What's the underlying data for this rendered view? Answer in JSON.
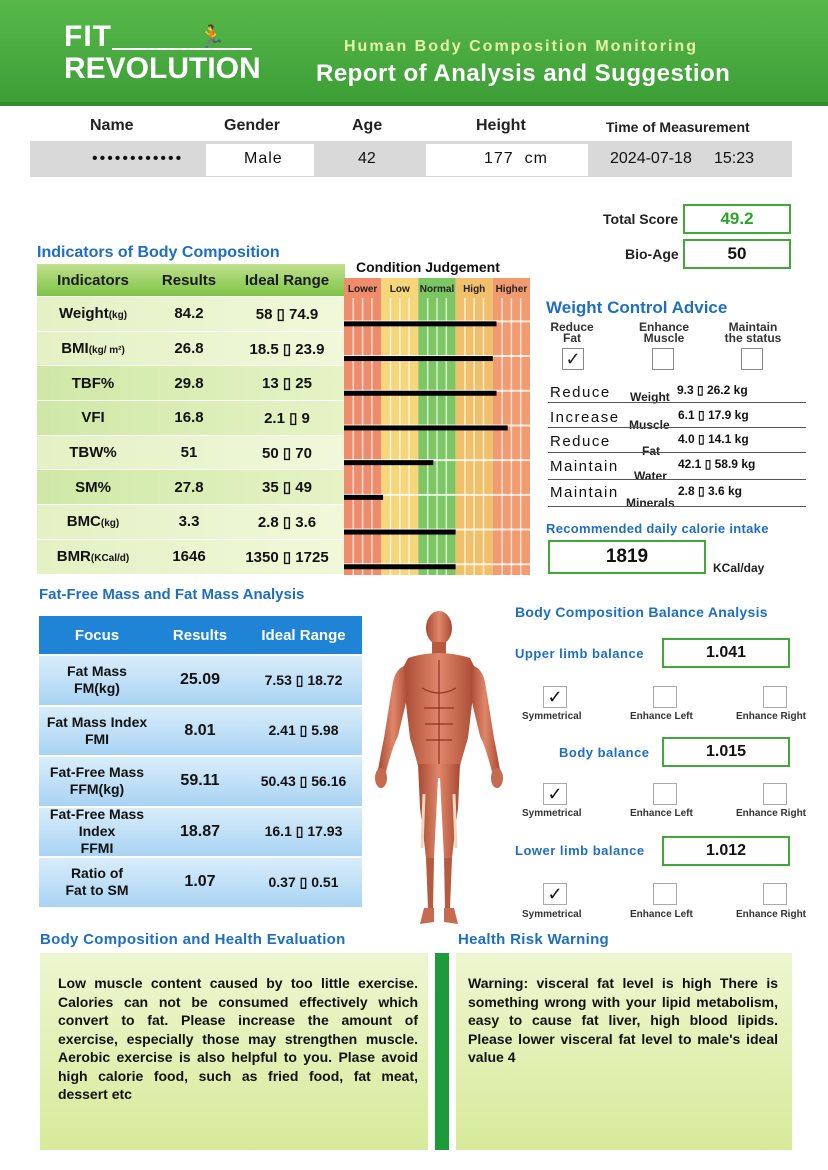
{
  "header": {
    "logo_line1": "FIT",
    "logo_line2": "REVOLUTION",
    "subtitle": "Human Body Composition Monitoring",
    "title": "Report of Analysis and Suggestion"
  },
  "info": {
    "headers": [
      "Name",
      "Gender",
      "Age",
      "Height",
      "Time of Measurement"
    ],
    "name": "••••••••••••",
    "gender": "Male",
    "age": "42",
    "height": "177  cm",
    "date": "2024-07-18",
    "time": "15:23"
  },
  "scores": {
    "total_label": "Total Score",
    "total_value": "49.2",
    "bioage_label": "Bio-Age",
    "bioage_value": "50"
  },
  "indicators": {
    "title": "Indicators of Body Composition",
    "headers": [
      "Indicators",
      "Results",
      "Ideal Range"
    ],
    "rows": [
      {
        "name": "Weight",
        "unit": "(kg)",
        "result": "84.2",
        "range": "58 ▯ 74.9",
        "bar_fraction": 0.82
      },
      {
        "name": "BMI",
        "unit": "(kg/ m²)",
        "result": "26.8",
        "range": "18.5 ▯ 23.9",
        "bar_fraction": 0.8
      },
      {
        "name": "TBF%",
        "unit": "",
        "result": "29.8",
        "range": "13 ▯ 25",
        "bar_fraction": 0.82
      },
      {
        "name": "VFI",
        "unit": "",
        "result": "16.8",
        "range": "2.1 ▯ 9",
        "bar_fraction": 0.88
      },
      {
        "name": "TBW%",
        "unit": "",
        "result": "51",
        "range": "50 ▯ 70",
        "bar_fraction": 0.48
      },
      {
        "name": "SM%",
        "unit": "",
        "result": "27.8",
        "range": "35 ▯ 49",
        "bar_fraction": 0.21
      },
      {
        "name": "BMC",
        "unit": "(kg)",
        "result": "3.3",
        "range": "2.8 ▯ 3.6",
        "bar_fraction": 0.6
      },
      {
        "name": "BMR",
        "unit": "(KCal/d)",
        "result": "1646",
        "range": "1350 ▯ 1725",
        "bar_fraction": 0.6
      }
    ]
  },
  "condition": {
    "title": "Condition Judgement",
    "levels": [
      "Lower",
      "Low",
      "Normal",
      "High",
      "Higher"
    ],
    "colors": [
      "#ee8c6c",
      "#f5d67a",
      "#7cc664",
      "#f0c06a",
      "#f29a70"
    ]
  },
  "weight_control": {
    "title": "Weight Control Advice",
    "options": [
      {
        "label1": "Reduce",
        "label2": "Fat",
        "checked": "✓"
      },
      {
        "label1": "Enhance",
        "label2": "Muscle",
        "checked": ""
      },
      {
        "label1": "Maintain",
        "label2": "the status",
        "checked": ""
      }
    ],
    "advice": [
      {
        "action": "Reduce",
        "what": "Weight",
        "range": "9.3 ▯ 26.2 kg"
      },
      {
        "action": "Increase",
        "what": "Muscle",
        "range": "6.1 ▯ 17.9 kg"
      },
      {
        "action": "Reduce",
        "what": "Fat",
        "range": "4.0 ▯ 14.1 kg"
      },
      {
        "action": "Maintain",
        "what": "Water",
        "range": "42.1 ▯ 58.9 kg"
      },
      {
        "action": "Maintain",
        "what": "Minerals",
        "range": "2.8 ▯ 3.6 kg"
      }
    ],
    "calorie_label": "Recommended daily calorie intake",
    "calorie_value": "1819",
    "calorie_unit": "KCal/day"
  },
  "ffm": {
    "title": "Fat-Free Mass and Fat Mass Analysis",
    "headers": [
      "Focus",
      "Results",
      "Ideal Range"
    ],
    "rows": [
      {
        "focus1": "Fat Mass",
        "focus2": "FM(kg)",
        "focus3": "",
        "result": "25.09",
        "range": "7.53 ▯ 18.72"
      },
      {
        "focus1": "Fat Mass Index",
        "focus2": "FMI",
        "focus3": "",
        "result": "8.01",
        "range": "2.41 ▯ 5.98"
      },
      {
        "focus1": "Fat-Free Mass",
        "focus2": "FFM(kg)",
        "focus3": "",
        "result": "59.11",
        "range": "50.43 ▯ 56.16"
      },
      {
        "focus1": "Fat-Free Mass",
        "focus2": "Index",
        "focus3": "FFMI",
        "result": "18.87",
        "range": "16.1 ▯ 17.93"
      },
      {
        "focus1": "Ratio of",
        "focus2": "Fat to SM",
        "focus3": "",
        "result": "1.07",
        "range": "0.37 ▯ 0.51"
      }
    ]
  },
  "balance": {
    "title": "Body Composition Balance Analysis",
    "options": [
      "Symmetrical",
      "Enhance Left",
      "Enhance Right"
    ],
    "items": [
      {
        "label": "Upper limb balance",
        "value": "1.041",
        "checks": [
          "✓",
          "",
          ""
        ]
      },
      {
        "label": "Body balance",
        "value": "1.015",
        "checks": [
          "✓",
          "",
          ""
        ]
      },
      {
        "label": "Lower limb balance",
        "value": "1.012",
        "checks": [
          "✓",
          "",
          ""
        ]
      }
    ]
  },
  "evaluation": {
    "title": "Body Composition and Health Evaluation",
    "text": "Low muscle content caused by too little exercise. Calories can not be consumed effectively which convert to fat. Please increase the amount of exercise, especially those may strengthen muscle. Aerobic exercise is also helpful to you. Plase avoid high calorie food, such as fried food, fat meat, dessert etc"
  },
  "risk": {
    "title": "Health Risk Warning",
    "text": "Warning: visceral fat level is high There is something wrong with your lipid metabolism, easy to cause fat liver, high blood lipids. Please lower visceral fat level to male's ideal value 4"
  }
}
